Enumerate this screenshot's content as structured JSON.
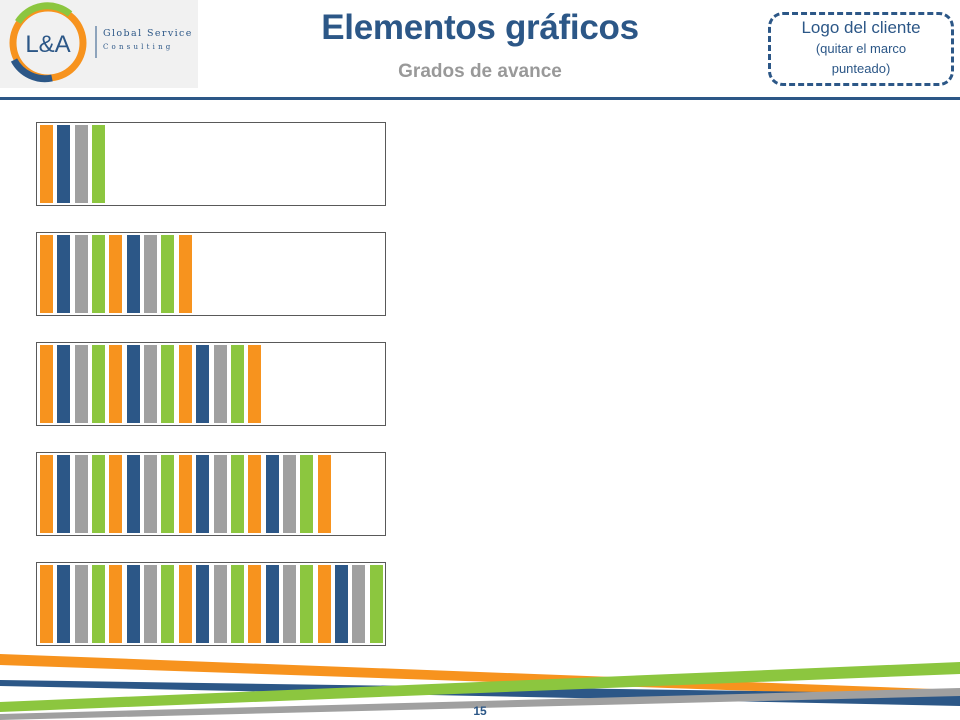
{
  "header": {
    "logo": {
      "initials": "L&A",
      "company_name": "Global Service",
      "company_sub": "Consulting"
    },
    "title": "Elementos gráficos",
    "subtitle": "Grados de avance",
    "client_placeholder": {
      "line1": "Logo del cliente",
      "line2": "(quitar el marco punteado)"
    }
  },
  "colors": {
    "brand_blue": "#2c5787",
    "orange": "#f7931e",
    "gray": "#a0a0a0",
    "green": "#8cc63f",
    "box_border": "#595959"
  },
  "progress_bars": {
    "stripe_cycle": [
      "orange",
      "blue",
      "gray",
      "green"
    ],
    "items": [
      {
        "progress": 0.2
      },
      {
        "progress": 0.45
      },
      {
        "progress": 0.65
      },
      {
        "progress": 0.85
      },
      {
        "progress": 1.0
      }
    ]
  },
  "footer": {
    "page_number": "15"
  }
}
